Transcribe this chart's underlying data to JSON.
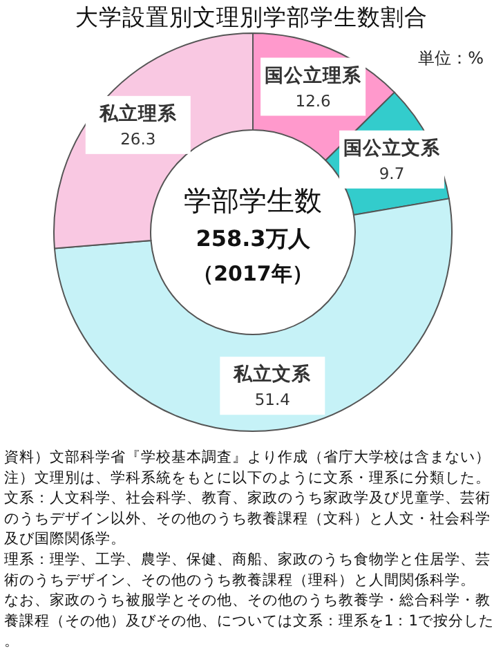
{
  "chart_data": {
    "type": "donut",
    "title": "大学設置別文理別学部学生数割合",
    "categories": [
      "国公立理系",
      "国公立文系",
      "私立文系",
      "私立理系"
    ],
    "values": [
      12.6,
      9.7,
      51.4,
      26.3
    ],
    "colors": [
      "#ff99cc",
      "#33cccc",
      "#c6f2f7",
      "#f9c8e2"
    ],
    "data_labels": true,
    "annotations": [
      "学部学生数",
      "258.3万人",
      "（2017年）",
      "単位：%",
      "資料）文部科学省『学校基本調査』より作成（省庁大学校は含まない）",
      "注）文理別は、学科系統をもとに以下のように文系・理系に分類した。",
      "文系：人文科学、社会科学、教育、家政のうち家政学及び児童学、芸術のうちデザイン以外、その他のうち教養課程（文科）と人文・社会科学及び国際関係学。",
      "理系：理学、工学、農学、保健、商船、家政のうち食物学と住居学、芸術のうちデザイン、その他のうち教養課程（理科）と人間関係科学。",
      "なお、家政のうち被服学とその他、その他のうち教養学・総合科学・教養課程（その他）及びその他、については文系：理系を1：1で按分した。"
    ]
  }
}
